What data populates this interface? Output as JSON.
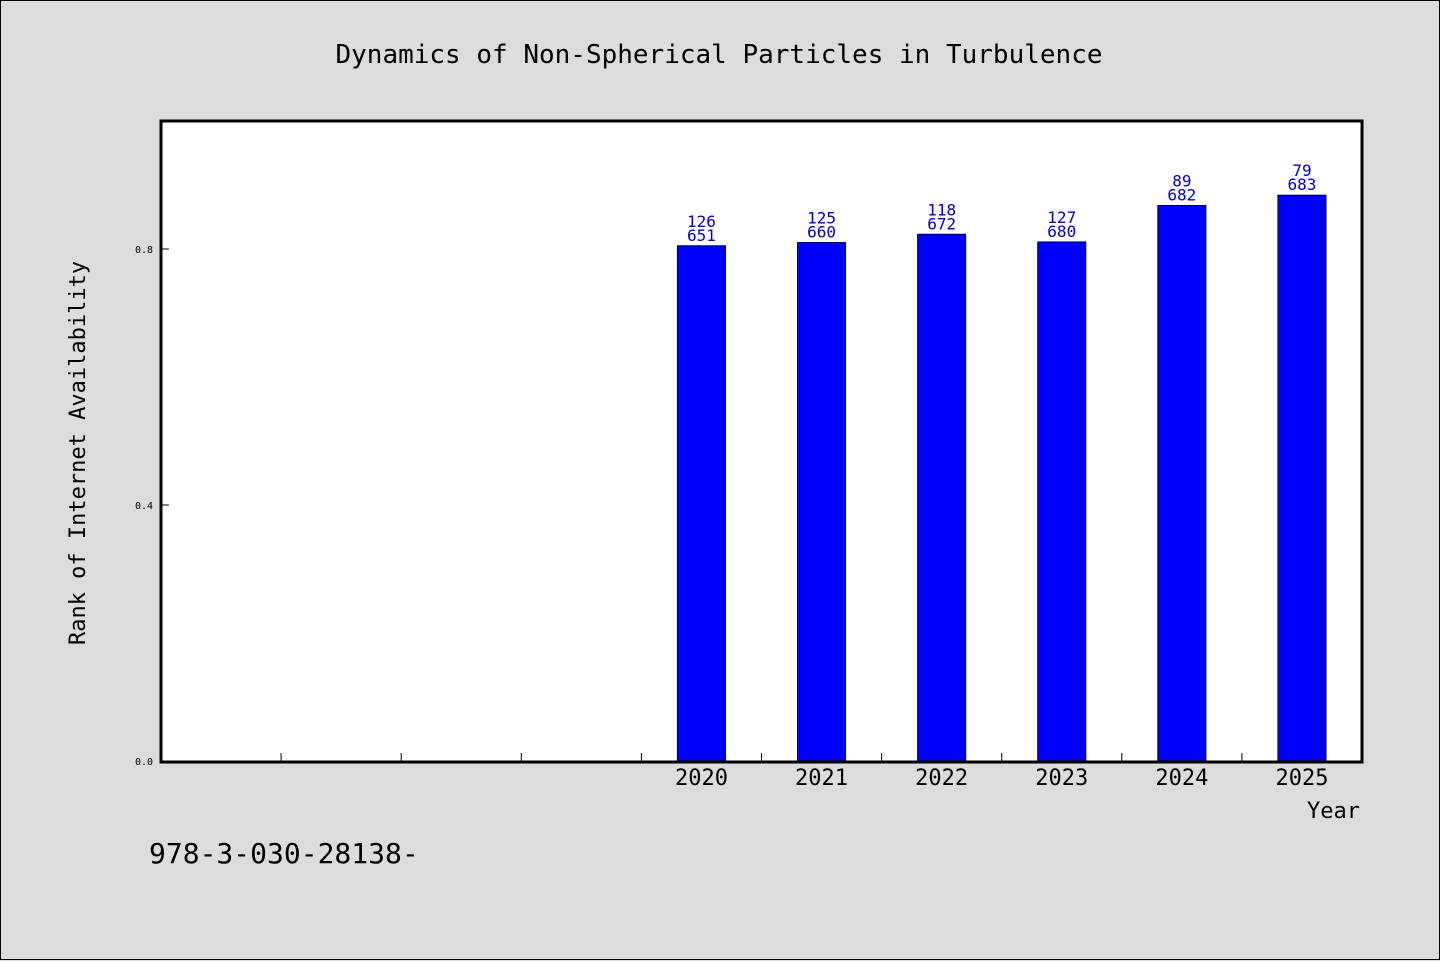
{
  "chart_data": {
    "type": "bar",
    "title": "Dynamics of Non-Spherical Particles in Turbulence",
    "xlabel": "Year",
    "ylabel": "Rank of Internet Availability",
    "categories": [
      "",
      "",
      "",
      "",
      "2020",
      "2021",
      "2022",
      "2023",
      "2024",
      "2025"
    ],
    "values": [
      null,
      null,
      null,
      null,
      0.805,
      0.81,
      0.823,
      0.811,
      0.868,
      0.884
    ],
    "labels": [
      [
        "",
        ""
      ],
      [
        "",
        ""
      ],
      [
        "",
        ""
      ],
      [
        "",
        ""
      ],
      [
        "126",
        "651"
      ],
      [
        "125",
        "660"
      ],
      [
        "118",
        "672"
      ],
      [
        "127",
        "680"
      ],
      [
        "89",
        "682"
      ],
      [
        "79",
        "683"
      ]
    ],
    "yticks": [
      0.0,
      0.4,
      0.8
    ],
    "ytick_labels": [
      "0.0",
      "0.4",
      "0.8"
    ],
    "ylim": [
      0,
      1.0
    ],
    "grid": false,
    "bar_color": "#0000ff",
    "label_color": "#0000cc",
    "background": "#dcdcdc",
    "plot_background": "#ffffff"
  },
  "footer_text": "978-3-030-28138-"
}
